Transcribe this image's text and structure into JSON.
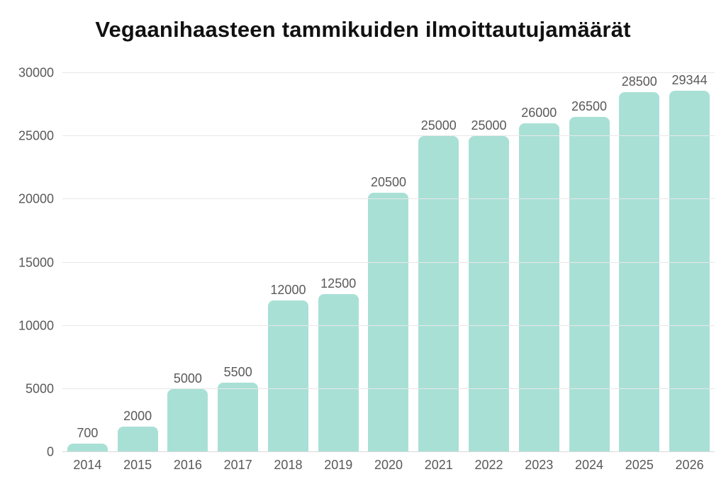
{
  "title": "Vegaanihaasteen tammikuiden ilmoittautujamäärät",
  "colors": {
    "bar": "#a9e0d6",
    "label": "#595959",
    "grid": "#e7e7e7",
    "baseline": "#dadada",
    "title": "#111111",
    "background": "#ffffff"
  },
  "chart_data": {
    "type": "bar",
    "title": "Vegaanihaasteen tammikuiden ilmoittautujamäärät",
    "categories": [
      "2014",
      "2015",
      "2016",
      "2017",
      "2018",
      "2019",
      "2020",
      "2021",
      "2022",
      "2023",
      "2024",
      "2025",
      "2026"
    ],
    "values": [
      700,
      2000,
      5000,
      5500,
      12000,
      12500,
      20500,
      25000,
      25000,
      26000,
      26500,
      28500,
      29344
    ],
    "value_labels": [
      "700",
      "2000",
      "5000",
      "5500",
      "12000",
      "12500",
      "20500",
      "25000",
      "25000",
      "26000",
      "26500",
      "28500",
      "29344"
    ],
    "xlabel": "",
    "ylabel": "",
    "ylim": [
      0,
      30000
    ],
    "yticks": [
      0,
      5000,
      10000,
      15000,
      20000,
      25000,
      30000
    ],
    "ytick_labels": [
      "0",
      "5000",
      "10000",
      "15000",
      "20000",
      "25000",
      "30000"
    ],
    "grid": true,
    "legend": false,
    "bar_color": "#a9e0d6"
  }
}
